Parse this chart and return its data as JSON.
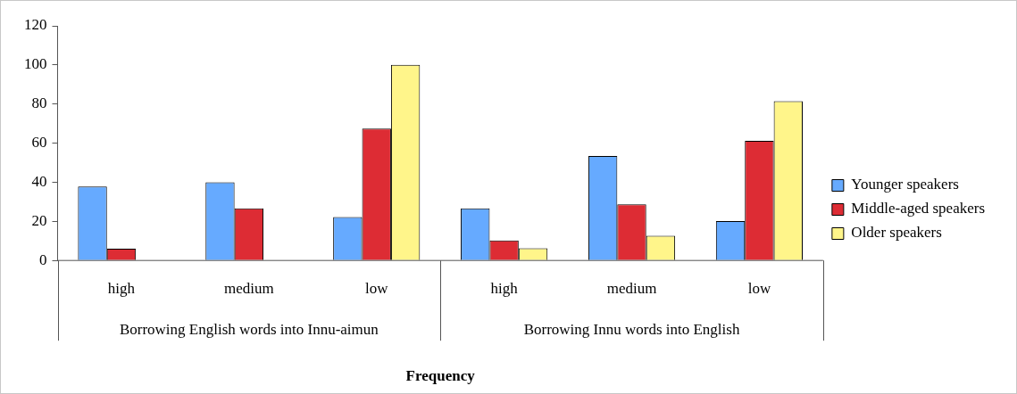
{
  "chart_data": {
    "type": "bar",
    "xlabel": "Frequency",
    "categories": [
      "high",
      "medium",
      "low",
      "high",
      "medium",
      "low"
    ],
    "series": [
      {
        "name": "Younger speakers",
        "color": "#66aaff",
        "values": [
          37.8,
          40,
          22.2,
          26.7,
          53.4,
          20.2
        ]
      },
      {
        "name": "Middle-aged speakers",
        "color": "#dd2c34",
        "values": [
          6,
          26.6,
          67.4,
          10.2,
          28.7,
          61.2
        ]
      },
      {
        "name": "Older speakers",
        "color": "#fff58a",
        "values": [
          null,
          null,
          100,
          6.2,
          12.6,
          81.5
        ]
      }
    ],
    "annotations": [
      "Borrowing English words into Innu-aimun",
      "Borrowing Innu words into English"
    ],
    "ylim": [
      0,
      120
    ],
    "yticks": [
      0,
      20,
      40,
      60,
      80,
      100,
      120
    ],
    "grid": false,
    "legend": "right"
  }
}
